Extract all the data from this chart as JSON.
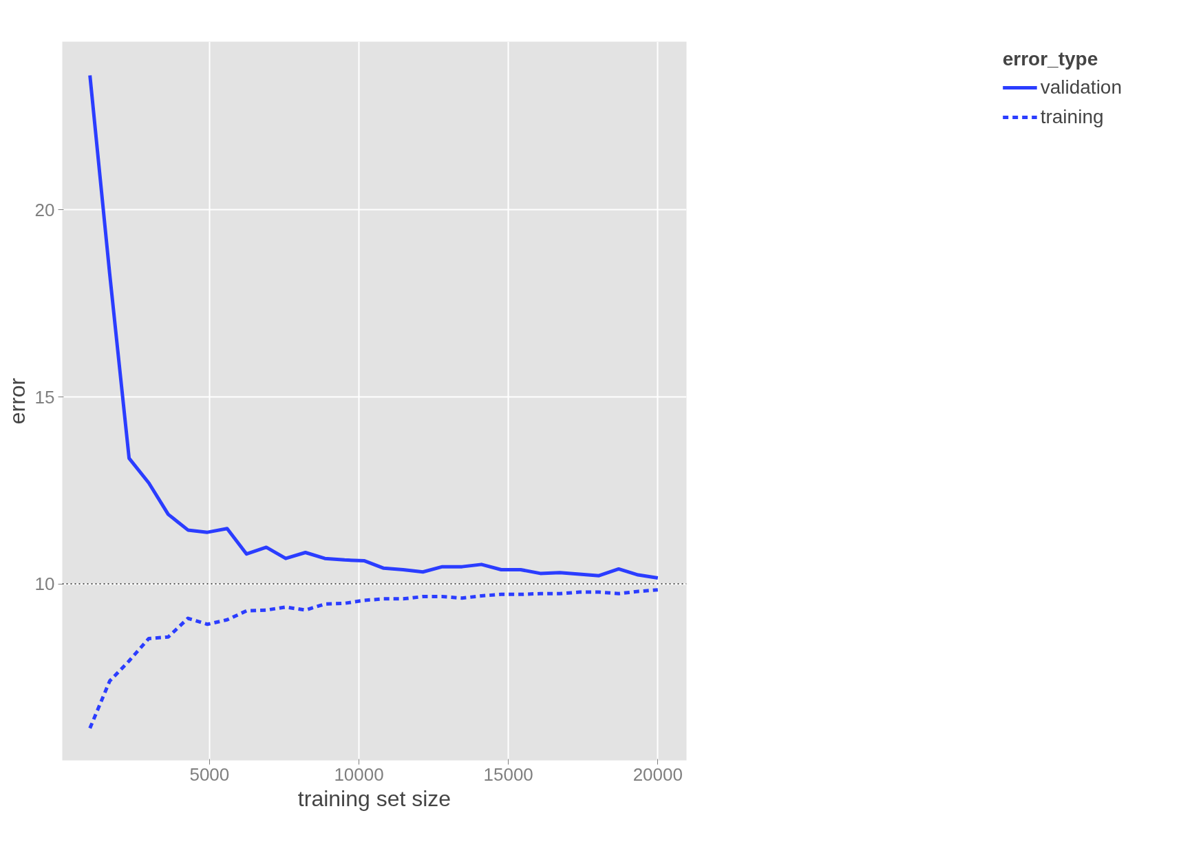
{
  "chart_data": {
    "type": "line",
    "xlabel": "training set size",
    "ylabel": "error",
    "legend_title": "error_type",
    "x": [
      1000,
      1660,
      2310,
      2970,
      3620,
      4280,
      4930,
      5590,
      6240,
      6900,
      7550,
      8210,
      8860,
      9520,
      10170,
      10830,
      11480,
      12140,
      12790,
      13450,
      14100,
      14760,
      15410,
      16070,
      16720,
      17380,
      18030,
      18690,
      19340,
      20000
    ],
    "series": [
      {
        "name": "validation",
        "color": "#2b3dff",
        "line_style": "solid",
        "values": [
          23.6,
          18.3,
          13.36,
          12.7,
          11.86,
          11.44,
          11.38,
          11.48,
          10.8,
          10.98,
          10.68,
          10.84,
          10.68,
          10.64,
          10.62,
          10.42,
          10.38,
          10.32,
          10.46,
          10.46,
          10.52,
          10.38,
          10.38,
          10.28,
          10.3,
          10.26,
          10.22,
          10.4,
          10.24,
          10.16
        ]
      },
      {
        "name": "training",
        "color": "#2b3dff",
        "line_style": "dashed",
        "values": [
          6.14,
          7.4,
          7.94,
          8.54,
          8.58,
          9.08,
          8.92,
          9.04,
          9.28,
          9.3,
          9.38,
          9.3,
          9.46,
          9.48,
          9.56,
          9.6,
          9.6,
          9.66,
          9.66,
          9.62,
          9.68,
          9.72,
          9.72,
          9.74,
          9.74,
          9.78,
          9.78,
          9.74,
          9.8,
          9.84
        ]
      }
    ],
    "xlim": [
      75,
      20960
    ],
    "ylim": [
      5.28,
      24.5
    ],
    "xticks": [
      5000,
      10000,
      15000,
      20000
    ],
    "yticks": [
      10,
      15,
      20
    ],
    "ref_lines": [
      {
        "axis": "y",
        "value": 10,
        "color": "#555555",
        "line_style": "dotted"
      }
    ],
    "grid": true,
    "legend": "right",
    "marker": "none"
  }
}
